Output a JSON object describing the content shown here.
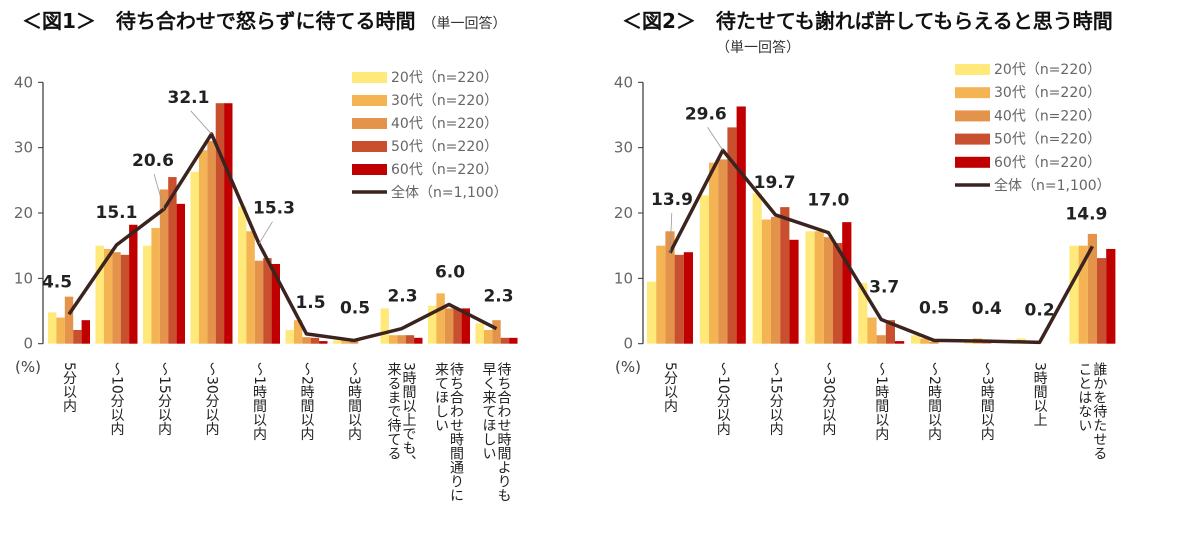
{
  "chart_data": [
    {
      "type": "bar+line",
      "title": "＜図1＞　待ち合わせで怒らずに待てる時間",
      "subtitle": "（単一回答）",
      "ylabel": "(%)",
      "ylim": [
        0,
        40
      ],
      "yticks": [
        0,
        10,
        20,
        30,
        40
      ],
      "legend_position": "top-right",
      "categories": [
        "5\n分以内",
        "〜\n10\n分以内",
        "〜\n15\n分以内",
        "〜\n30\n分以内",
        "〜\n1\n時間以内",
        "〜\n2\n時間以内",
        "〜\n3\n時間以内",
        "3時間以上でも、|来るまで待てる",
        "待ち合わせ時間通りに|来てほしい",
        "待ち合わせ時間よりも|早く来てほしい"
      ],
      "series": [
        {
          "name": "20代（n=220）",
          "color": "#FFE97A",
          "values": [
            4.8,
            15.0,
            15.0,
            26.3,
            21.0,
            2.1,
            0.5,
            5.4,
            5.8,
            3.1
          ]
        },
        {
          "name": "30代（n=220）",
          "color": "#F5B453",
          "values": [
            4.0,
            14.5,
            17.7,
            29.6,
            17.2,
            3.6,
            0.5,
            1.3,
            7.7,
            2.1
          ]
        },
        {
          "name": "40代（n=220）",
          "color": "#E3944A",
          "values": [
            7.2,
            14.0,
            23.6,
            31.0,
            12.7,
            1.0,
            0.5,
            1.3,
            5.4,
            3.6
          ]
        },
        {
          "name": "50代（n=220）",
          "color": "#C9502E",
          "values": [
            2.1,
            13.6,
            25.5,
            36.8,
            13.1,
            0.9,
            0.0,
            1.3,
            5.4,
            0.9
          ]
        },
        {
          "name": "60代（n=220）",
          "color": "#C00000",
          "values": [
            3.6,
            18.2,
            21.4,
            36.8,
            12.2,
            0.4,
            0.0,
            0.9,
            5.4,
            0.9
          ]
        }
      ],
      "line": {
        "name": "全体（n=1,100）",
        "color": "#3B2420",
        "values": [
          4.5,
          15.1,
          20.6,
          32.1,
          15.3,
          1.5,
          0.5,
          2.3,
          6.0,
          2.3
        ],
        "labels": [
          "4.5",
          "15.1",
          "20.6",
          "32.1",
          "15.3",
          "1.5",
          "0.5",
          "2.3",
          "6.0",
          "2.3"
        ]
      }
    },
    {
      "type": "bar+line",
      "title": "＜図2＞　待たせても謝れば許してもらえると思う時間",
      "subtitle": "（単一回答）",
      "ylabel": "(%)",
      "ylim": [
        0,
        40
      ],
      "yticks": [
        0,
        10,
        20,
        30,
        40
      ],
      "legend_position": "top-right",
      "categories": [
        "5\n分以内",
        "〜\n10\n分以内",
        "〜\n15\n分以内",
        "〜\n30\n分以内",
        "〜\n1\n時間以内",
        "〜\n2\n時間以内",
        "〜\n3\n時間以内",
        "3\n時間以上",
        "誰かを待たせる|ことはない"
      ],
      "series": [
        {
          "name": "20代（n=220）",
          "color": "#FFE97A",
          "values": [
            9.5,
            22.7,
            23.0,
            17.2,
            9.3,
            1.3,
            0.4,
            0.8,
            15.0
          ]
        },
        {
          "name": "30代（n=220）",
          "color": "#F5B453",
          "values": [
            15.0,
            27.7,
            19.0,
            17.2,
            4.0,
            0.8,
            0.8,
            0.0,
            15.0
          ]
        },
        {
          "name": "40代（n=220）",
          "color": "#E3944A",
          "values": [
            17.2,
            28.2,
            19.4,
            16.3,
            1.3,
            0.3,
            0.4,
            0.0,
            16.8
          ]
        },
        {
          "name": "50代（n=220）",
          "color": "#C9502E",
          "values": [
            13.6,
            33.1,
            20.9,
            15.4,
            3.6,
            0.0,
            0.0,
            0.0,
            13.1
          ]
        },
        {
          "name": "60代（n=220）",
          "color": "#C00000",
          "values": [
            14.0,
            36.3,
            15.9,
            18.6,
            0.4,
            0.0,
            0.0,
            0.0,
            14.5
          ]
        }
      ],
      "line": {
        "name": "全体（n=1,100）",
        "color": "#3B2420",
        "values": [
          13.9,
          29.6,
          19.7,
          17.0,
          3.7,
          0.5,
          0.4,
          0.2,
          14.9
        ],
        "labels": [
          "13.9",
          "29.6",
          "19.7",
          "17.0",
          "3.7",
          "0.5",
          "0.4",
          "0.2",
          "14.9"
        ]
      }
    }
  ]
}
